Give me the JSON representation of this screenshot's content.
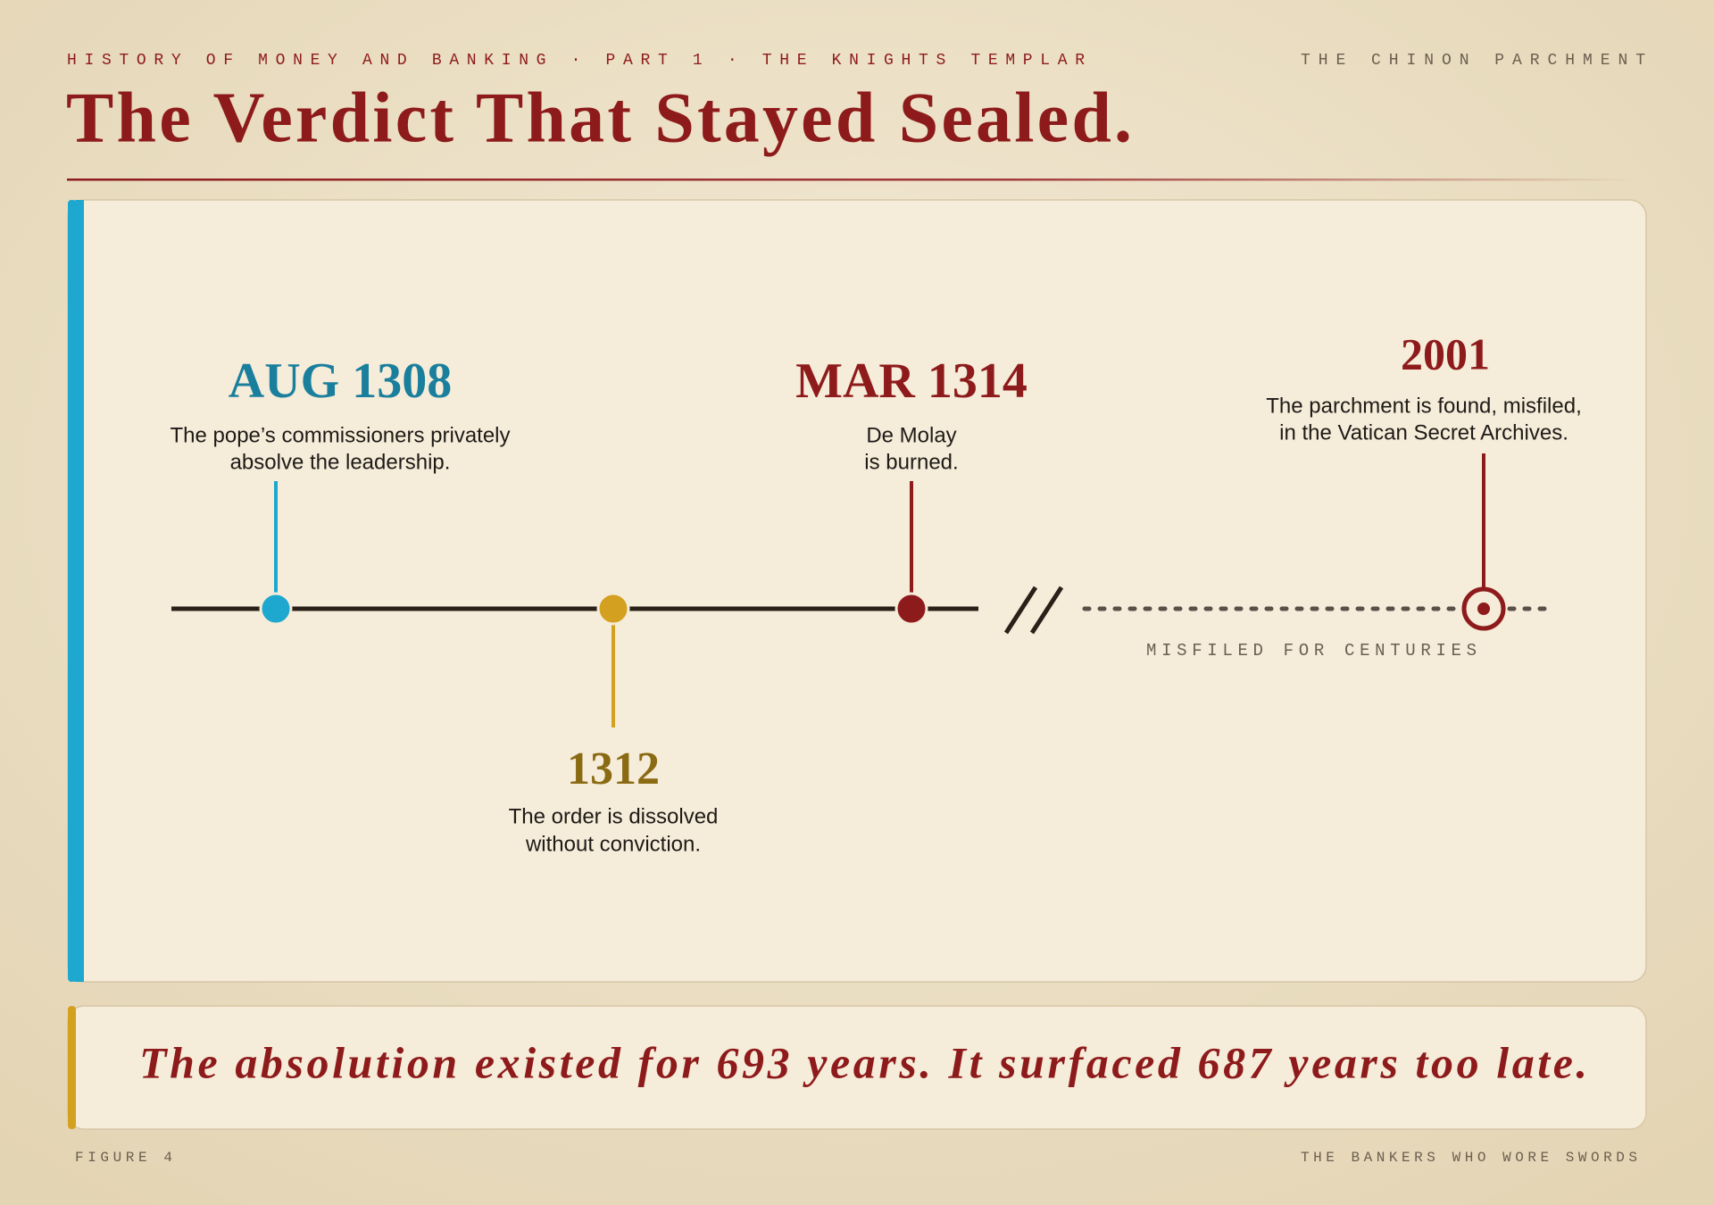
{
  "header": {
    "kicker": "HISTORY OF MONEY AND BANKING · PART 1 · THE KNIGHTS TEMPLAR",
    "source": "THE CHINON PARCHMENT",
    "title": "The Verdict That Stayed Sealed."
  },
  "timeline": {
    "events": [
      {
        "date": "AUG 1308",
        "lines": [
          "The pope’s commissioners privately",
          "absolve the leadership."
        ]
      },
      {
        "date": "1312",
        "lines": [
          "The order is dissolved",
          "without conviction."
        ]
      },
      {
        "date": "MAR 1314",
        "lines": [
          "De Molay",
          "is burned."
        ]
      },
      {
        "date": "2001",
        "lines": [
          "The parchment is found, misfiled,",
          "in the Vatican Secret Archives."
        ]
      }
    ],
    "gap_label": "MISFILED FOR CENTURIES"
  },
  "conclusion": "The absolution existed for 693 years. It surfaced 687 years too late.",
  "footer": {
    "figure": "FIGURE 4",
    "series": "THE BANKERS WHO WORE SWORDS"
  }
}
